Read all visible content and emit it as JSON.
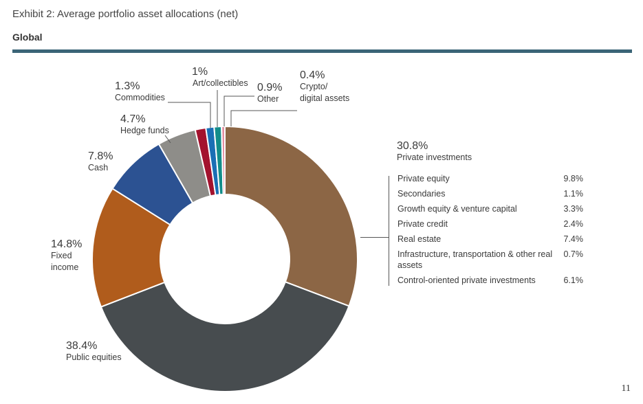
{
  "header": {
    "exhibit_title": "Exhibit 2: Average portfolio asset allocations (net)",
    "region": "Global"
  },
  "page_number": "11",
  "chart_data": {
    "type": "pie",
    "donut": true,
    "slices": [
      {
        "label": "Private investments",
        "value": 30.8,
        "display": "30.8%",
        "color": "#8c6645"
      },
      {
        "label": "Public equities",
        "value": 38.4,
        "display": "38.4%",
        "color": "#474c4f"
      },
      {
        "label": "Fixed income",
        "value": 14.8,
        "display": "14.8%",
        "color": "#b05c1c"
      },
      {
        "label": "Cash",
        "value": 7.8,
        "display": "7.8%",
        "color": "#2c5292"
      },
      {
        "label": "Hedge funds",
        "value": 4.7,
        "display": "4.7%",
        "color": "#8e8d89"
      },
      {
        "label": "Commodities",
        "value": 1.3,
        "display": "1.3%",
        "color": "#a3122e"
      },
      {
        "label": "Art/collectibles",
        "value": 1,
        "display": "1%",
        "color": "#1a6fb5"
      },
      {
        "label": "Other",
        "value": 0.9,
        "display": "0.9%",
        "color": "#128d8a"
      },
      {
        "label": "Crypto/ digital assets",
        "value": 0.4,
        "display": "0.4%",
        "color": "#e28fa3"
      }
    ],
    "private_investments_breakdown": [
      {
        "label": "Private equity",
        "value": 9.8,
        "display": "9.8%"
      },
      {
        "label": "Secondaries",
        "value": 1.1,
        "display": "1.1%"
      },
      {
        "label": "Growth equity & venture capital",
        "value": 3.3,
        "display": "3.3%"
      },
      {
        "label": "Private credit",
        "value": 2.4,
        "display": "2.4%"
      },
      {
        "label": "Real estate",
        "value": 7.4,
        "display": "7.4%"
      },
      {
        "label": "Infrastructure, transportation & other real assets",
        "value": 0.7,
        "display": "0.7%"
      },
      {
        "label": "Control-oriented private investments",
        "value": 6.1,
        "display": "6.1%"
      }
    ]
  }
}
